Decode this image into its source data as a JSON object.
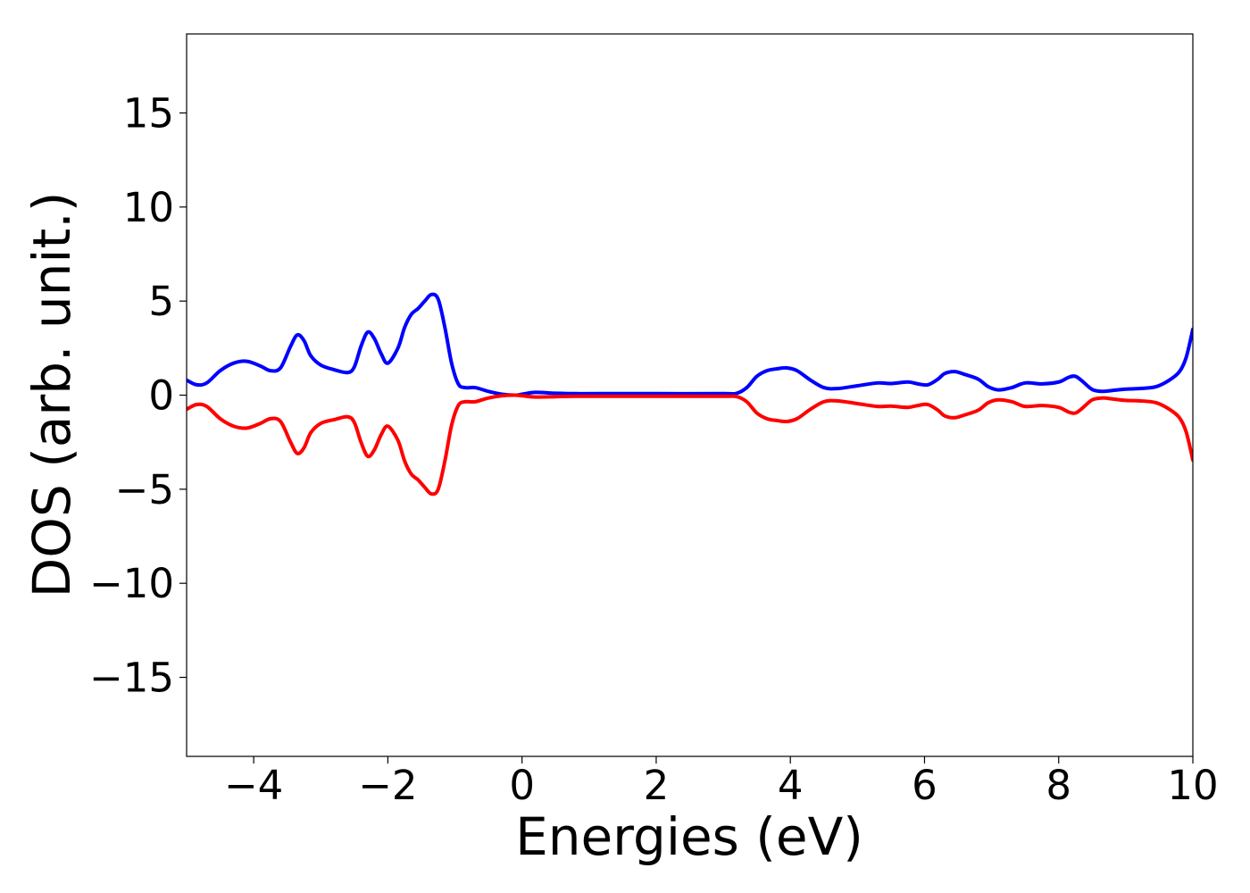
{
  "chart_data": {
    "type": "line",
    "title": "",
    "xlabel": "Energies (eV)",
    "ylabel": "DOS (arb. unit.)",
    "xlim": [
      -5,
      10
    ],
    "ylim": [
      -19.2,
      19.2
    ],
    "x_ticks": [
      -4,
      -2,
      0,
      2,
      4,
      6,
      8,
      10
    ],
    "x_tick_labels": [
      "−4",
      "−2",
      "0",
      "2",
      "4",
      "6",
      "8",
      "10"
    ],
    "y_ticks": [
      -15,
      -10,
      -5,
      0,
      5,
      10,
      15
    ],
    "y_tick_labels": [
      "−15",
      "−10",
      "−5",
      "0",
      "5",
      "10",
      "15"
    ],
    "grid": false,
    "legend": "none",
    "series": [
      {
        "color": "#0000ff",
        "x": [
          -5.0,
          -4.85,
          -4.7,
          -4.5,
          -4.3,
          -4.1,
          -3.9,
          -3.75,
          -3.6,
          -3.45,
          -3.35,
          -3.25,
          -3.15,
          -3.0,
          -2.8,
          -2.6,
          -2.5,
          -2.4,
          -2.3,
          -2.2,
          -2.1,
          -2.0,
          -1.85,
          -1.75,
          -1.65,
          -1.55,
          -1.45,
          -1.35,
          -1.25,
          -1.15,
          -1.05,
          -0.95,
          -0.85,
          -0.7,
          -0.5,
          -0.3,
          -0.1,
          0.0,
          0.2,
          0.5,
          0.8,
          1.2,
          2.0,
          3.0,
          3.2,
          3.35,
          3.5,
          3.65,
          3.8,
          3.95,
          4.1,
          4.3,
          4.5,
          4.7,
          5.0,
          5.3,
          5.5,
          5.75,
          5.9,
          6.05,
          6.2,
          6.3,
          6.45,
          6.6,
          6.8,
          6.95,
          7.1,
          7.3,
          7.5,
          7.75,
          8.0,
          8.15,
          8.25,
          8.35,
          8.5,
          8.65,
          8.8,
          9.0,
          9.2,
          9.45,
          9.65,
          9.8,
          9.9,
          10.0
        ],
        "y": [
          0.8,
          0.55,
          0.65,
          1.3,
          1.7,
          1.8,
          1.55,
          1.3,
          1.45,
          2.6,
          3.2,
          2.9,
          2.1,
          1.6,
          1.35,
          1.2,
          1.5,
          2.6,
          3.35,
          3.0,
          2.2,
          1.7,
          2.5,
          3.6,
          4.3,
          4.6,
          5.0,
          5.35,
          5.1,
          3.6,
          1.7,
          0.6,
          0.4,
          0.4,
          0.2,
          0.05,
          0.0,
          0.05,
          0.15,
          0.1,
          0.08,
          0.08,
          0.08,
          0.08,
          0.1,
          0.4,
          1.0,
          1.3,
          1.4,
          1.45,
          1.3,
          0.8,
          0.4,
          0.35,
          0.5,
          0.65,
          0.62,
          0.7,
          0.6,
          0.55,
          0.85,
          1.15,
          1.25,
          1.1,
          0.85,
          0.45,
          0.28,
          0.4,
          0.65,
          0.6,
          0.7,
          0.95,
          1.0,
          0.75,
          0.3,
          0.2,
          0.25,
          0.32,
          0.35,
          0.45,
          0.8,
          1.25,
          2.0,
          3.5
        ]
      },
      {
        "color": "#ff0000",
        "x": [
          -5.0,
          -4.85,
          -4.7,
          -4.5,
          -4.3,
          -4.1,
          -3.9,
          -3.75,
          -3.6,
          -3.45,
          -3.35,
          -3.25,
          -3.15,
          -3.0,
          -2.8,
          -2.6,
          -2.5,
          -2.4,
          -2.3,
          -2.2,
          -2.1,
          -2.0,
          -1.85,
          -1.75,
          -1.65,
          -1.55,
          -1.45,
          -1.35,
          -1.25,
          -1.15,
          -1.05,
          -0.95,
          -0.85,
          -0.7,
          -0.5,
          -0.3,
          -0.1,
          0.0,
          0.2,
          0.5,
          0.8,
          1.2,
          2.0,
          3.0,
          3.2,
          3.35,
          3.5,
          3.65,
          3.8,
          3.95,
          4.1,
          4.3,
          4.5,
          4.7,
          5.0,
          5.3,
          5.5,
          5.75,
          5.9,
          6.05,
          6.2,
          6.3,
          6.45,
          6.6,
          6.8,
          6.95,
          7.1,
          7.3,
          7.5,
          7.75,
          8.0,
          8.15,
          8.25,
          8.35,
          8.5,
          8.65,
          8.8,
          9.0,
          9.2,
          9.45,
          9.65,
          9.8,
          9.9,
          10.0
        ],
        "y": [
          -0.75,
          -0.5,
          -0.6,
          -1.25,
          -1.65,
          -1.75,
          -1.5,
          -1.25,
          -1.4,
          -2.5,
          -3.1,
          -2.8,
          -2.0,
          -1.5,
          -1.3,
          -1.15,
          -1.45,
          -2.5,
          -3.25,
          -2.9,
          -2.1,
          -1.65,
          -2.4,
          -3.5,
          -4.2,
          -4.5,
          -4.9,
          -5.25,
          -5.0,
          -3.5,
          -1.6,
          -0.55,
          -0.35,
          -0.35,
          -0.15,
          -0.03,
          0.0,
          -0.03,
          -0.1,
          -0.08,
          -0.06,
          -0.06,
          -0.06,
          -0.06,
          -0.08,
          -0.35,
          -0.95,
          -1.25,
          -1.35,
          -1.4,
          -1.25,
          -0.75,
          -0.35,
          -0.3,
          -0.45,
          -0.6,
          -0.58,
          -0.65,
          -0.55,
          -0.5,
          -0.8,
          -1.1,
          -1.2,
          -1.05,
          -0.8,
          -0.4,
          -0.25,
          -0.35,
          -0.6,
          -0.55,
          -0.65,
          -0.9,
          -0.95,
          -0.7,
          -0.25,
          -0.15,
          -0.2,
          -0.28,
          -0.3,
          -0.4,
          -0.75,
          -1.2,
          -1.95,
          -3.45
        ]
      }
    ]
  }
}
